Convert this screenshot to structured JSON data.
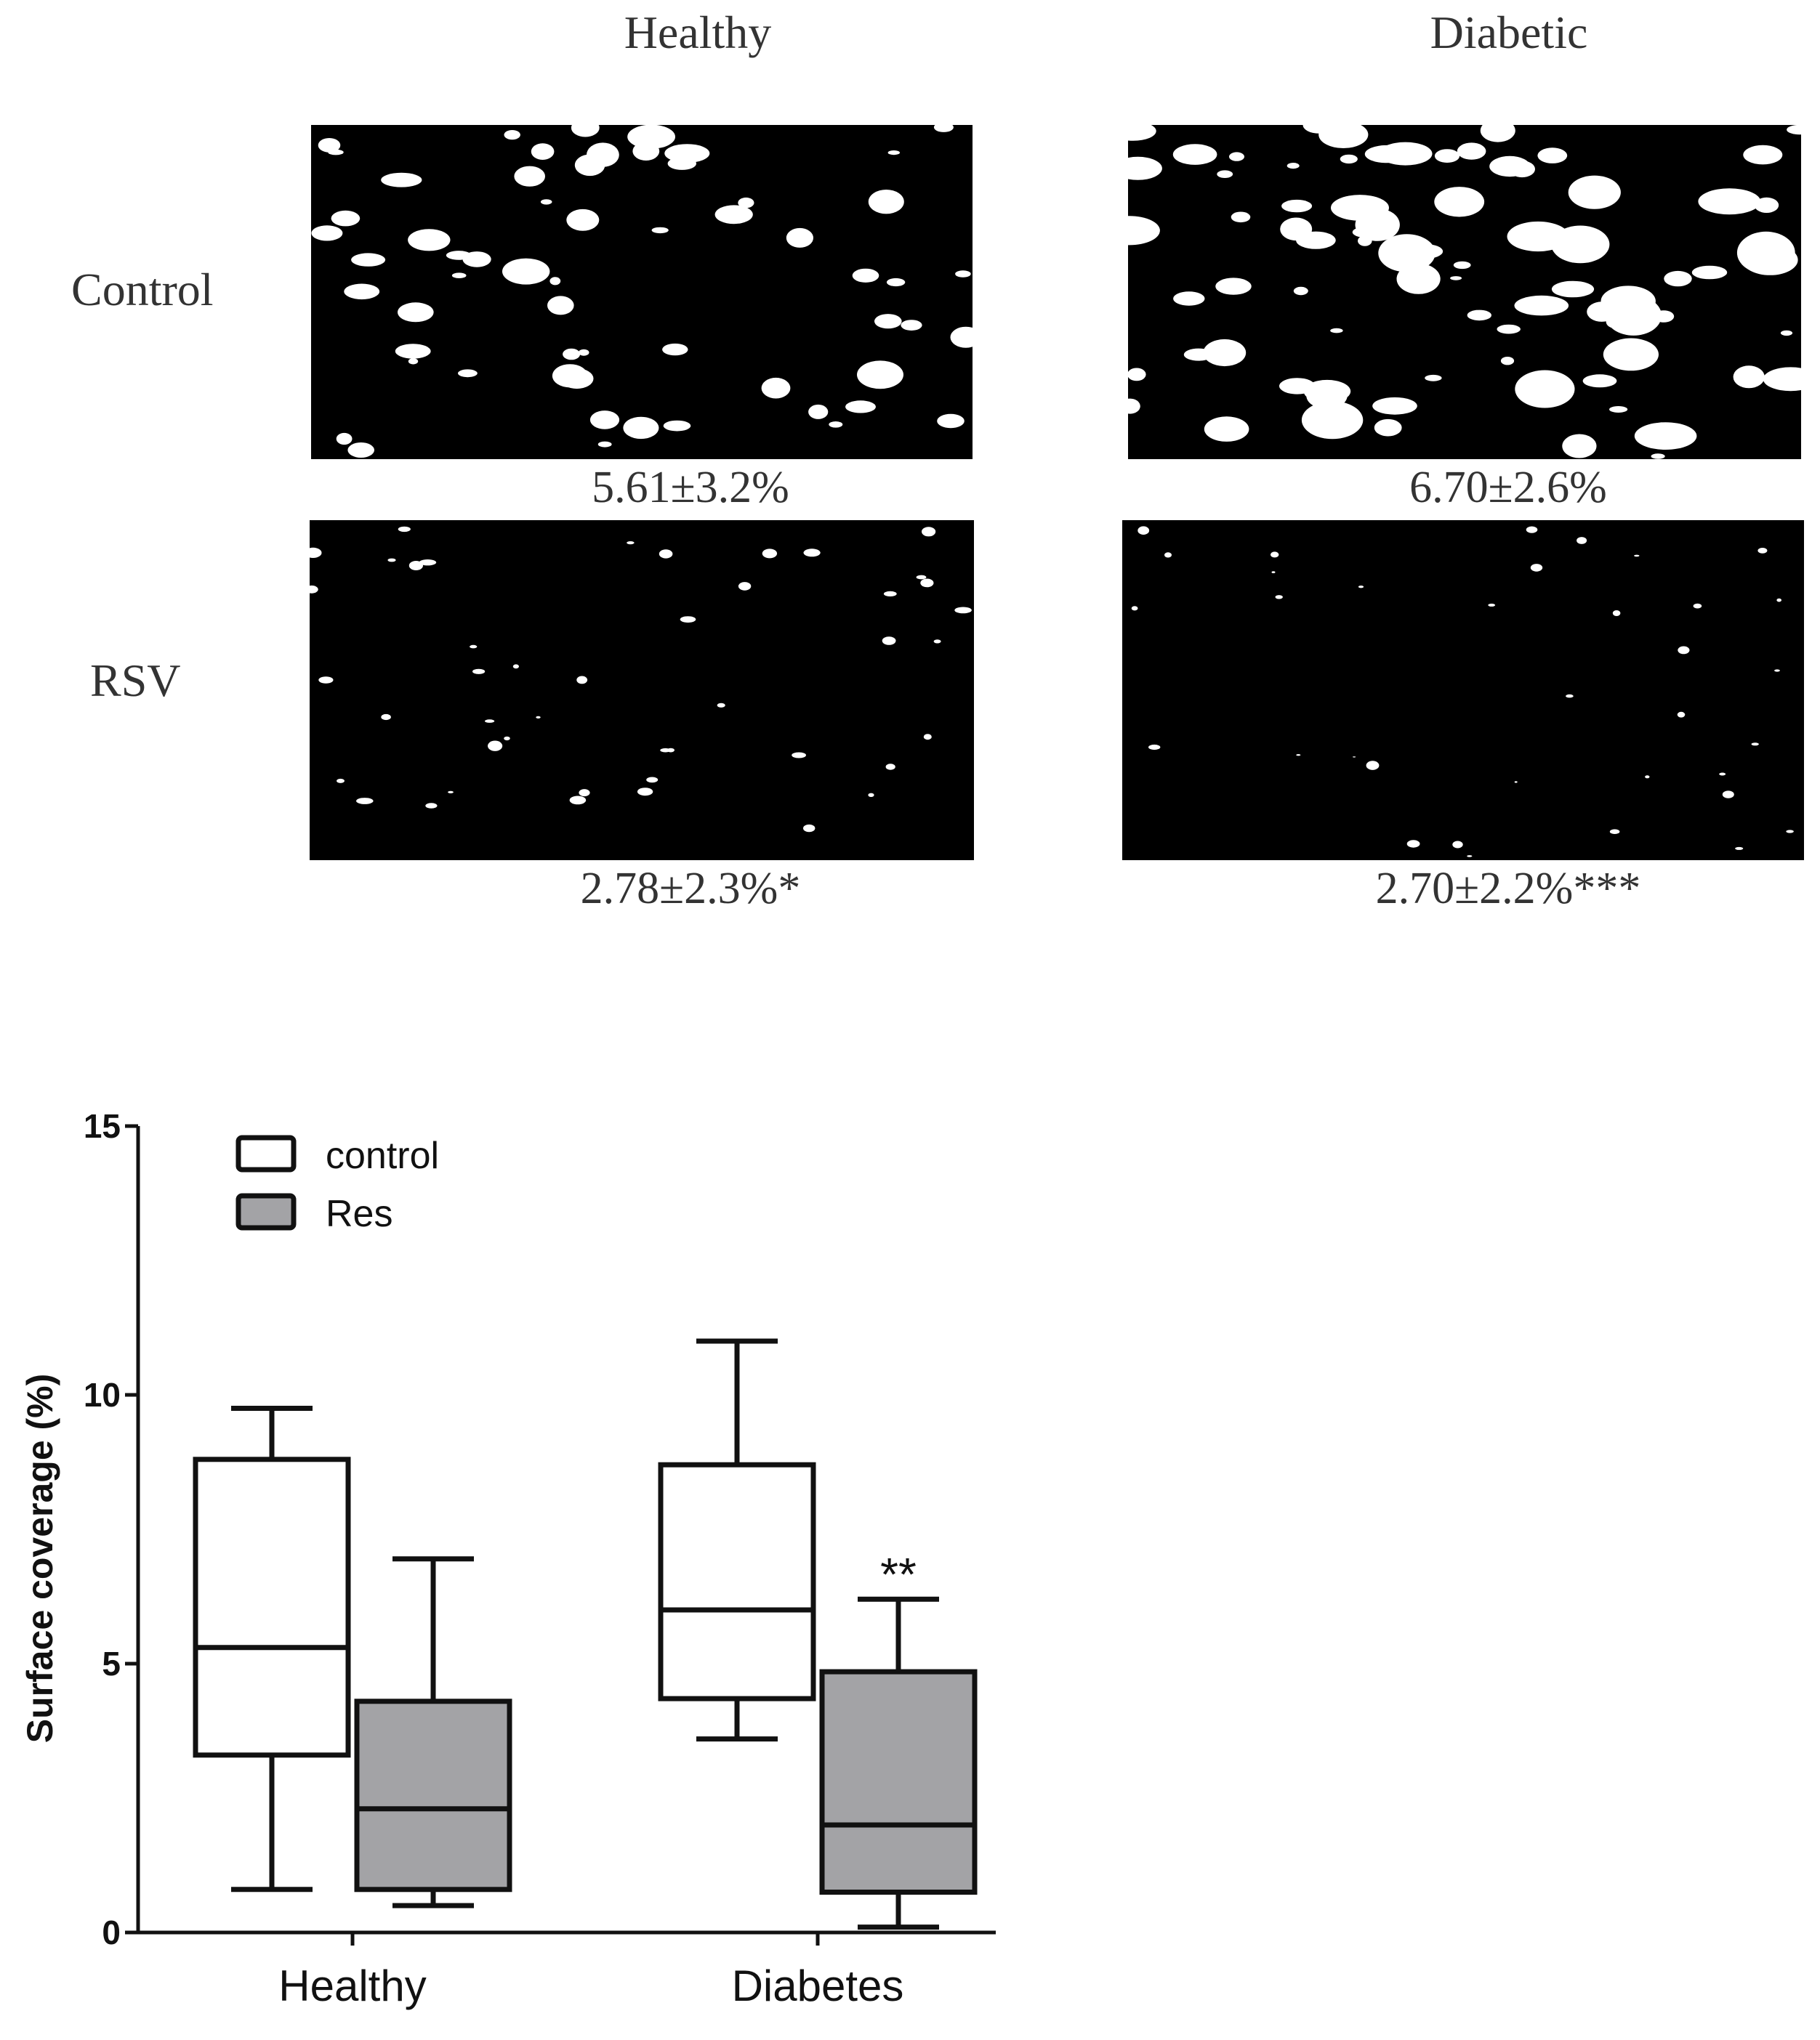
{
  "micrographs": {
    "columns": [
      "Healthy",
      "Diabetic"
    ],
    "rows": [
      "Control",
      "RSV"
    ],
    "panels": [
      {
        "id": "healthy-control",
        "value": "5.61±3.2%"
      },
      {
        "id": "diabetic-control",
        "value": "6.70±2.6%"
      },
      {
        "id": "healthy-rsv",
        "value": "2.78±2.3%*"
      },
      {
        "id": "diabetic-rsv",
        "value": "2.70±2.2%***"
      }
    ]
  },
  "chart_data": {
    "type": "boxplot",
    "title": "",
    "xlabel": "",
    "ylabel": "Surface coverage (%)",
    "ylim": [
      0,
      15
    ],
    "yticks": [
      0,
      5,
      10,
      15
    ],
    "categories": [
      "Healthy",
      "Diabetes"
    ],
    "legend_position": "top-left",
    "series": [
      {
        "name": "control",
        "color": "#ffffff",
        "boxes": [
          {
            "whisker_low": 0.8,
            "q1": 3.3,
            "median": 5.3,
            "q3": 8.8,
            "whisker_high": 9.75,
            "annotation": ""
          },
          {
            "whisker_low": 3.6,
            "q1": 4.35,
            "median": 6.0,
            "q3": 8.7,
            "whisker_high": 11.0,
            "annotation": ""
          }
        ]
      },
      {
        "name": "Res",
        "color": "#a3a3a6",
        "boxes": [
          {
            "whisker_low": 0.5,
            "q1": 0.8,
            "median": 2.3,
            "q3": 4.3,
            "whisker_high": 6.95,
            "annotation": ""
          },
          {
            "whisker_low": 0.1,
            "q1": 0.75,
            "median": 2.0,
            "q3": 4.85,
            "whisker_high": 6.2,
            "annotation": "**"
          }
        ]
      }
    ]
  }
}
